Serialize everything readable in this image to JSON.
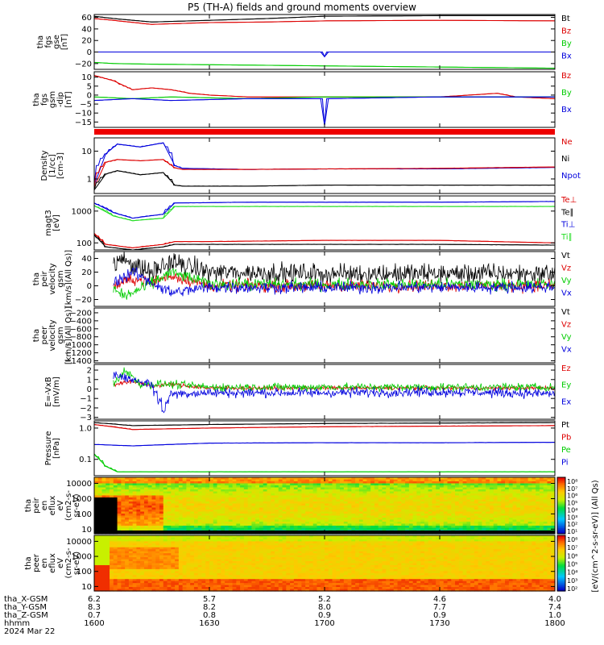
{
  "title": "P5 (TH-A) fields and ground moments overview",
  "colors": {
    "black": "#000000",
    "red": "#dd0000",
    "green": "#00cc00",
    "blue": "#0000dd",
    "light_green": "#22dd22"
  },
  "chart_data": [
    {
      "type": "line",
      "ylabel": [
        "tha",
        "fgs",
        "gse",
        "[nT]"
      ],
      "yticks": [
        -20,
        0,
        20,
        40,
        60
      ],
      "ylim": [
        -30,
        65
      ],
      "legend": [
        "Bt",
        "Bz",
        "By",
        "Bx"
      ],
      "legend_colors": [
        "#000000",
        "#dd0000",
        "#00cc00",
        "#0000dd"
      ],
      "series": [
        {
          "name": "Bt",
          "color": "#000000",
          "x": [
            1600,
            1605,
            1615,
            1630,
            1645,
            1700,
            1730,
            1800
          ],
          "y": [
            62,
            58,
            52,
            55,
            58,
            62,
            63,
            63
          ]
        },
        {
          "name": "Bz",
          "color": "#dd0000",
          "x": [
            1600,
            1605,
            1615,
            1630,
            1645,
            1700,
            1730,
            1800
          ],
          "y": [
            58,
            55,
            48,
            51,
            52,
            54,
            55,
            54
          ]
        },
        {
          "name": "By",
          "color": "#00cc00",
          "x": [
            1600,
            1605,
            1615,
            1630,
            1700,
            1730,
            1800
          ],
          "y": [
            -18,
            -20,
            -21,
            -22,
            -24,
            -26,
            -28
          ]
        },
        {
          "name": "Bx",
          "color": "#0000dd",
          "x": [
            1600,
            1630,
            1659,
            1700,
            1701,
            1730,
            1800
          ],
          "y": [
            0,
            0,
            0,
            -8,
            0,
            0,
            0
          ]
        }
      ]
    },
    {
      "type": "line",
      "ylabel": [
        "tha",
        "fgs",
        "gsm",
        "-dip",
        "[nT]"
      ],
      "yticks": [
        -15,
        -10,
        -5,
        0,
        5,
        10
      ],
      "ylim": [
        -18,
        13
      ],
      "legend": [
        "Bz",
        "By",
        "Bx"
      ],
      "legend_colors": [
        "#dd0000",
        "#00cc00",
        "#0000dd"
      ],
      "series": [
        {
          "name": "Bz",
          "color": "#dd0000",
          "x": [
            1600,
            1605,
            1610,
            1615,
            1620,
            1625,
            1630,
            1640,
            1700,
            1730,
            1745,
            1750,
            1800
          ],
          "y": [
            11,
            8,
            3,
            4,
            3,
            1,
            0,
            -1,
            -1,
            -1,
            1,
            -1,
            -2
          ]
        },
        {
          "name": "By",
          "color": "#00cc00",
          "x": [
            1600,
            1610,
            1620,
            1640,
            1700,
            1730,
            1745,
            1800
          ],
          "y": [
            -1,
            -2,
            -1,
            -2,
            -1,
            -1,
            -1,
            -1
          ]
        },
        {
          "name": "Bx",
          "color": "#0000dd",
          "x": [
            1600,
            1610,
            1620,
            1640,
            1659,
            1700,
            1701,
            1730,
            1800
          ],
          "y": [
            -3,
            -2,
            -3,
            -2,
            -2,
            -17,
            -2,
            -1,
            -1
          ]
        }
      ]
    },
    {
      "type": "line",
      "scale": "log",
      "ylabel": [
        "Density",
        "[1/cc]",
        "[cm-3]"
      ],
      "yticks": [
        1,
        10
      ],
      "ylim": [
        0.3,
        30
      ],
      "legend": [
        "Ne",
        "Ni",
        "Npot"
      ],
      "legend_colors": [
        "#dd0000",
        "#000000",
        "#0000dd"
      ],
      "series": [
        {
          "name": "Npot",
          "color": "#0000dd",
          "x": [
            1600,
            1603,
            1606,
            1612,
            1618,
            1621,
            1623,
            1640,
            1700,
            1730,
            1800
          ],
          "y": [
            0.6,
            8,
            18,
            14,
            20,
            3,
            2.4,
            2.2,
            2.3,
            2.3,
            2.6
          ]
        },
        {
          "name": "Ne",
          "color": "#dd0000",
          "x": [
            1600,
            1603,
            1606,
            1612,
            1618,
            1621,
            1623,
            1640,
            1700,
            1730,
            1800
          ],
          "y": [
            0.5,
            4,
            5,
            4.5,
            5,
            2.5,
            2.2,
            2.2,
            2.3,
            2.4,
            2.7
          ]
        },
        {
          "name": "Ni",
          "color": "#000000",
          "x": [
            1600,
            1603,
            1606,
            1612,
            1618,
            1621,
            1623,
            1640,
            1700,
            1730,
            1800
          ],
          "y": [
            0.4,
            1.5,
            2.0,
            1.4,
            1.7,
            0.6,
            0.55,
            0.55,
            0.6,
            0.6,
            0.6
          ]
        }
      ]
    },
    {
      "type": "line",
      "scale": "log",
      "ylabel": [
        "magt3",
        "[eV]"
      ],
      "yticks": [
        100,
        1000
      ],
      "ylim": [
        60,
        3000
      ],
      "legend": [
        "Te⊥",
        "Te∥",
        "Ti⊥",
        "Ti∥"
      ],
      "legend_colors": [
        "#dd0000",
        "#000000",
        "#0000dd",
        "#22dd22"
      ],
      "series": [
        {
          "name": "Ti⊥",
          "color": "#0000dd",
          "x": [
            1600,
            1605,
            1610,
            1618,
            1621,
            1640,
            1700,
            1730,
            1800
          ],
          "y": [
            1800,
            900,
            600,
            800,
            1800,
            1900,
            1900,
            1900,
            2000
          ]
        },
        {
          "name": "Ti∥",
          "color": "#22dd22",
          "x": [
            1600,
            1605,
            1610,
            1618,
            1621,
            1640,
            1700,
            1730,
            1800
          ],
          "y": [
            1500,
            700,
            500,
            600,
            1400,
            1400,
            1400,
            1400,
            1400
          ]
        },
        {
          "name": "Te⊥",
          "color": "#dd0000",
          "x": [
            1600,
            1603,
            1610,
            1618,
            1621,
            1630,
            1700,
            1730,
            1800
          ],
          "y": [
            200,
            90,
            70,
            90,
            110,
            110,
            120,
            120,
            100
          ]
        },
        {
          "name": "Te∥",
          "color": "#000000",
          "x": [
            1600,
            1603,
            1610,
            1618,
            1621,
            1630,
            1700,
            1730,
            1800
          ],
          "y": [
            180,
            75,
            60,
            75,
            90,
            90,
            90,
            90,
            85
          ]
        }
      ]
    },
    {
      "type": "line",
      "ylabel": [
        "tha",
        "peir",
        "velocity",
        "gsm",
        "[km/s](All Qs)]"
      ],
      "yticks": [
        -20,
        0,
        20,
        40
      ],
      "ylim": [
        -30,
        50
      ],
      "legend": [
        "Vt",
        "Vz",
        "Vy",
        "Vx"
      ],
      "legend_colors": [
        "#000000",
        "#dd0000",
        "#00cc00",
        "#0000dd"
      ],
      "noise": [
        10,
        6,
        6,
        6
      ],
      "series": [
        {
          "name": "Vt",
          "color": "#000000",
          "x": [
            1605,
            1608,
            1612,
            1615,
            1620,
            1630,
            1700,
            1730,
            1800
          ],
          "y": [
            30,
            40,
            25,
            20,
            35,
            20,
            18,
            18,
            18
          ]
        },
        {
          "name": "Vz",
          "color": "#dd0000",
          "x": [
            1605,
            1610,
            1615,
            1620,
            1630,
            1700,
            1730,
            1800
          ],
          "y": [
            0,
            10,
            5,
            15,
            0,
            0,
            0,
            0
          ]
        },
        {
          "name": "Vy",
          "color": "#00cc00",
          "x": [
            1605,
            1608,
            1612,
            1620,
            1630,
            1700,
            1730,
            1800
          ],
          "y": [
            -5,
            -15,
            -5,
            20,
            3,
            2,
            2,
            2
          ]
        },
        {
          "name": "Vx",
          "color": "#0000dd",
          "x": [
            1605,
            1610,
            1615,
            1620,
            1630,
            1700,
            1730,
            1800
          ],
          "y": [
            5,
            20,
            5,
            -10,
            -2,
            -3,
            -2,
            -2
          ]
        }
      ]
    },
    {
      "type": "line",
      "ylabel": [
        "tha",
        "peer",
        "velocity",
        "gsm",
        "[km/s](All Qs)]"
      ],
      "yticks": [
        -1400,
        -1200,
        -1000,
        -800,
        -600,
        -400,
        -200
      ],
      "ylim": [
        -1450,
        -80
      ],
      "legend": [
        "Vt",
        "Vz",
        "Vy",
        "Vx"
      ],
      "legend_colors": [
        "#000000",
        "#dd0000",
        "#00cc00",
        "#0000dd"
      ],
      "series": []
    },
    {
      "type": "line",
      "ylabel": [
        "E=-VxB",
        "[mV/m]"
      ],
      "yticks": [
        -3,
        -2,
        -1,
        0,
        1,
        2
      ],
      "ylim": [
        -3.2,
        2.6
      ],
      "legend": [
        "Ez",
        "Ey",
        "Ex"
      ],
      "legend_colors": [
        "#dd0000",
        "#00cc00",
        "#0000dd"
      ],
      "noise": [
        0.15,
        0.3,
        0.35
      ],
      "series": [
        {
          "name": "Ez",
          "color": "#dd0000",
          "x": [
            1605,
            1610,
            1615,
            1620,
            1630,
            1700,
            1730,
            1800
          ],
          "y": [
            0.5,
            0.8,
            0.3,
            0.5,
            0.1,
            0.1,
            0.1,
            0.1
          ]
        },
        {
          "name": "Ey",
          "color": "#00cc00",
          "x": [
            1605,
            1608,
            1612,
            1620,
            1630,
            1700,
            1730,
            1800
          ],
          "y": [
            0.5,
            2.0,
            0.5,
            0.5,
            0.2,
            0.2,
            0.2,
            0.2
          ]
        },
        {
          "name": "Ex",
          "color": "#0000dd",
          "x": [
            1605,
            1610,
            1615,
            1618,
            1620,
            1630,
            1700,
            1730,
            1800
          ],
          "y": [
            1.5,
            1.0,
            0.5,
            -2.2,
            -0.5,
            -0.4,
            -0.4,
            -0.3,
            -0.5
          ]
        }
      ]
    },
    {
      "type": "line",
      "scale": "log",
      "ylabel": [
        "Pressure",
        "[nPa]"
      ],
      "yticks": [
        0.1,
        1.0
      ],
      "ylim": [
        0.03,
        1.7
      ],
      "yticklabels": [
        "0.1",
        "1.0"
      ],
      "legend": [
        "Pt",
        "Pb",
        "Pe",
        "Pi"
      ],
      "legend_colors": [
        "#000000",
        "#dd0000",
        "#00cc00",
        "#0000dd"
      ],
      "series": [
        {
          "name": "Pt",
          "color": "#000000",
          "x": [
            1600,
            1610,
            1630,
            1700,
            1730,
            1800
          ],
          "y": [
            1.5,
            1.2,
            1.3,
            1.4,
            1.45,
            1.5
          ]
        },
        {
          "name": "Pb",
          "color": "#dd0000",
          "x": [
            1600,
            1610,
            1630,
            1700,
            1730,
            1800
          ],
          "y": [
            1.3,
            0.9,
            1.0,
            1.1,
            1.15,
            1.2
          ]
        },
        {
          "name": "Pi",
          "color": "#0000dd",
          "x": [
            1600,
            1610,
            1620,
            1630,
            1700,
            1730,
            1800
          ],
          "y": [
            0.3,
            0.27,
            0.3,
            0.33,
            0.34,
            0.34,
            0.35
          ]
        },
        {
          "name": "Pe",
          "color": "#00cc00",
          "x": [
            1600,
            1603,
            1606,
            1630,
            1700,
            1730,
            1800
          ],
          "y": [
            0.15,
            0.06,
            0.04,
            0.04,
            0.04,
            0.04,
            0.04
          ]
        }
      ]
    },
    {
      "type": "heatmap",
      "ylabel": [
        "tha",
        "peir",
        "en",
        "eflux",
        "eV",
        "(cm2-s-",
        "sr-eV)"
      ],
      "yticks": [
        10,
        100,
        1000,
        10000
      ],
      "ylim": [
        5,
        25000
      ]
    },
    {
      "type": "heatmap",
      "ylabel": [
        "tha",
        "peer",
        "en",
        "eflux",
        "eV",
        "(cm2-s-",
        "sr-eV)"
      ],
      "yticks": [
        10,
        100,
        1000,
        10000
      ],
      "ylim": [
        5,
        25000
      ]
    }
  ],
  "colorbar": {
    "label": "[eV/(cm^2-s-sr-eV)] (All Qs)",
    "ticks_top": [
      "10⁸",
      "10⁷",
      "10⁶",
      "10⁵",
      "10⁴",
      "10³",
      "10²",
      "10¹"
    ],
    "ticks_bottom": [
      "10⁸",
      "10⁷",
      "10⁶",
      "10⁵",
      "10⁴",
      "10³",
      "10²"
    ]
  },
  "time_axis": {
    "ticks": [
      1600,
      1630,
      1700,
      1730,
      1800
    ],
    "xlim": [
      1600,
      1800
    ]
  },
  "footer": {
    "rows": [
      {
        "label": "tha_X-GSM",
        "values": [
          "6.2",
          "5.7",
          "5.2",
          "4.6",
          "4.0"
        ]
      },
      {
        "label": "tha_Y-GSM",
        "values": [
          "8.3",
          "8.2",
          "8.0",
          "7.7",
          "7.4"
        ]
      },
      {
        "label": "tha_Z-GSM",
        "values": [
          "0.7",
          "0.8",
          "0.9",
          "0.9",
          "1.0"
        ]
      },
      {
        "label": "hhmm",
        "values": [
          "1600",
          "1630",
          "1700",
          "1730",
          "1800"
        ]
      }
    ],
    "date": "2024 Mar 22"
  }
}
